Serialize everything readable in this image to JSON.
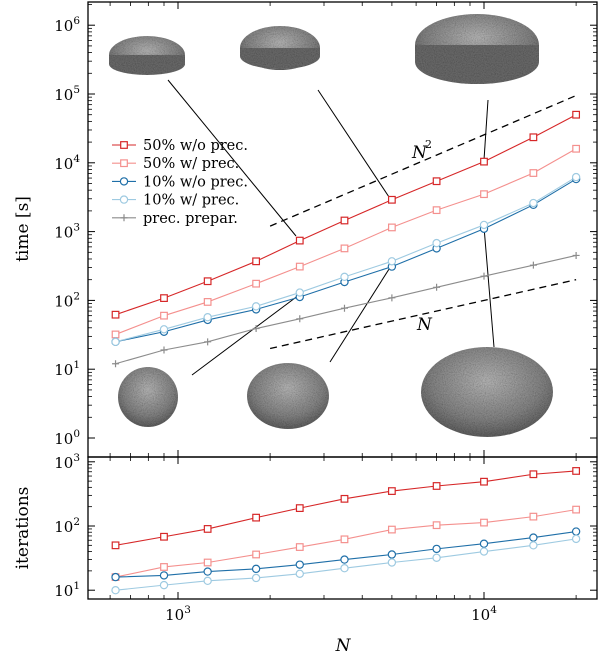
{
  "chart_data": [
    {
      "type": "line",
      "xlabel": "N",
      "ylabel": "time [s]",
      "xscale": "log",
      "yscale": "log",
      "xlim": [
        560,
        22000
      ],
      "ylim": [
        0.6,
        2000000
      ],
      "xticks": [
        {
          "value": 1000,
          "base": "10",
          "exp": "3"
        },
        {
          "value": 10000,
          "base": "10",
          "exp": "4"
        }
      ],
      "yticks": [
        {
          "value": 1,
          "base": "10",
          "exp": "0"
        },
        {
          "value": 10,
          "base": "10",
          "exp": "1"
        },
        {
          "value": 100,
          "base": "10",
          "exp": "2"
        },
        {
          "value": 1000,
          "base": "10",
          "exp": "3"
        },
        {
          "value": 10000,
          "base": "10",
          "exp": "4"
        },
        {
          "value": 100000,
          "base": "10",
          "exp": "5"
        },
        {
          "value": 1000000,
          "base": "10",
          "exp": "6"
        }
      ],
      "x": [
        625,
        900,
        1250,
        1800,
        2500,
        3500,
        5000,
        7000,
        10000,
        14500,
        20000
      ],
      "series": [
        {
          "name": "50% w/o prec.",
          "color": "#d62728",
          "marker": "square",
          "values": [
            62,
            108,
            190,
            370,
            740,
            1450,
            2900,
            5400,
            10400,
            23500,
            50000
          ]
        },
        {
          "name": "50% w/ prec.",
          "color": "#f4908e",
          "marker": "square",
          "values": [
            32,
            60,
            95,
            175,
            310,
            570,
            1150,
            2050,
            3500,
            7100,
            16000
          ]
        },
        {
          "name": "10% w/o prec.",
          "color": "#1f6fa8",
          "marker": "circle",
          "values": [
            25,
            35,
            52,
            74,
            112,
            185,
            310,
            570,
            1100,
            2450,
            5800
          ]
        },
        {
          "name": "10% w/ prec.",
          "color": "#9ecae1",
          "marker": "circle",
          "values": [
            25,
            38,
            57,
            82,
            130,
            220,
            370,
            680,
            1250,
            2600,
            6200
          ]
        },
        {
          "name": "prec. prepar.",
          "color": "#8c8c8c",
          "marker": "plus",
          "values": [
            12,
            19,
            25,
            39,
            54,
            77,
            109,
            155,
            225,
            325,
            450
          ]
        }
      ],
      "reference_lines": [
        {
          "label_base": "N",
          "label_exp": "2",
          "points": [
            [
              2000,
              1200
            ],
            [
              20000,
              95000
            ]
          ]
        },
        {
          "label_base": "N",
          "label_exp": "",
          "points": [
            [
              2000,
              20
            ],
            [
              20000,
              200
            ]
          ]
        }
      ],
      "legend": "upper-left",
      "grid": false
    },
    {
      "type": "line",
      "xlabel": "N",
      "ylabel": "iterations",
      "xscale": "log",
      "yscale": "log",
      "xlim": [
        560,
        22000
      ],
      "ylim": [
        8,
        1000
      ],
      "yticks": [
        {
          "value": 10,
          "base": "10",
          "exp": "1"
        },
        {
          "value": 100,
          "base": "10",
          "exp": "2"
        },
        {
          "value": 1000,
          "base": "10",
          "exp": "3"
        }
      ],
      "x": [
        625,
        900,
        1250,
        1800,
        2500,
        3500,
        5000,
        7000,
        10000,
        14500,
        20000
      ],
      "series": [
        {
          "name": "50% w/o prec.",
          "color": "#d62728",
          "marker": "square",
          "values": [
            50,
            68,
            90,
            135,
            190,
            265,
            350,
            420,
            490,
            640,
            720
          ]
        },
        {
          "name": "50% w/ prec.",
          "color": "#f4908e",
          "marker": "square",
          "values": [
            16,
            23,
            27,
            36,
            47,
            62,
            88,
            103,
            113,
            140,
            180
          ]
        },
        {
          "name": "10% w/o prec.",
          "color": "#1f6fa8",
          "marker": "circle",
          "values": [
            16,
            17,
            19.5,
            21.5,
            25,
            30,
            36,
            44,
            53,
            66,
            82
          ]
        },
        {
          "name": "10% w/ prec.",
          "color": "#9ecae1",
          "marker": "circle",
          "values": [
            10,
            12,
            14,
            15.5,
            18,
            22,
            27,
            32,
            40,
            50,
            63
          ]
        }
      ]
    }
  ]
}
